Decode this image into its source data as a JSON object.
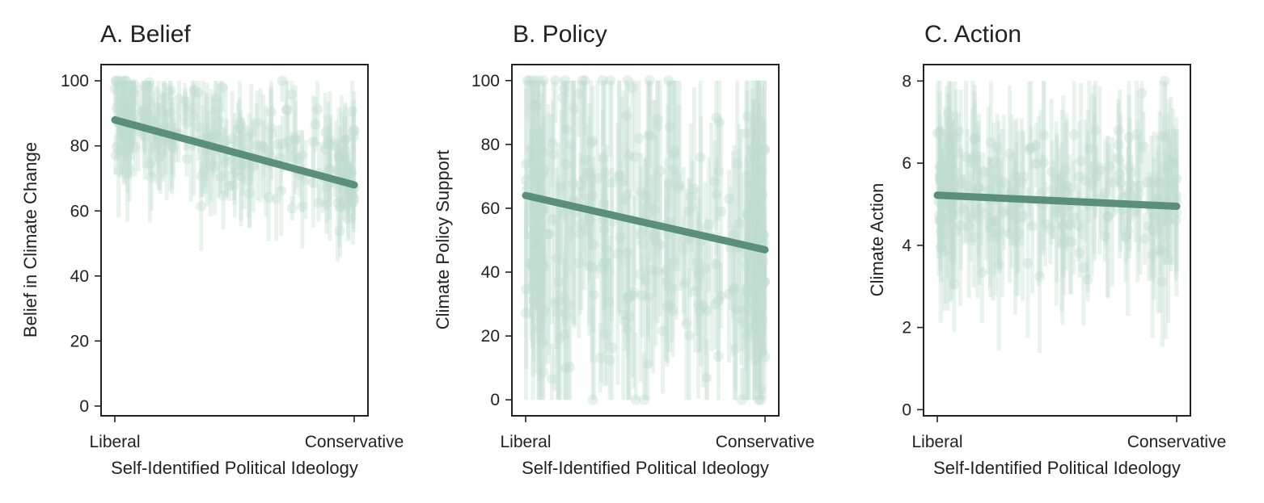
{
  "figure": {
    "colors": {
      "points": "#bfdccf",
      "fit": "#5a8f78",
      "axes": "#222222"
    }
  },
  "chart_data": [
    {
      "type": "scatter",
      "title": "A. Belief",
      "xlabel": "Self-Identified Political Ideology",
      "ylabel": "Belief in Climate Change",
      "xlim": [
        0,
        1
      ],
      "ylim": [
        -3,
        105
      ],
      "xticks": [
        {
          "value": 0,
          "label": "Liberal"
        },
        {
          "value": 1,
          "label": "Conservative"
        }
      ],
      "yticks": [
        0,
        20,
        40,
        60,
        80,
        100
      ],
      "fit_line": {
        "x": [
          0,
          1
        ],
        "y": [
          88,
          68
        ]
      },
      "scatter": {
        "n": 260,
        "noise_sd": 8,
        "err_half_mean": 12,
        "clip": [
          0,
          100
        ],
        "trend": [
          [
            0,
            90
          ],
          [
            0.5,
            80
          ],
          [
            1,
            72
          ]
        ]
      }
    },
    {
      "type": "scatter",
      "title": "B. Policy",
      "xlabel": "Self-Identified Political Ideology",
      "ylabel": "Climate Policy Support",
      "xlim": [
        0,
        1
      ],
      "ylim": [
        -5,
        105
      ],
      "xticks": [
        {
          "value": 0,
          "label": "Liberal"
        },
        {
          "value": 1,
          "label": "Conservative"
        }
      ],
      "yticks": [
        0,
        20,
        40,
        60,
        80,
        100
      ],
      "fit_line": {
        "x": [
          0,
          1
        ],
        "y": [
          64,
          47
        ]
      },
      "scatter": {
        "n": 320,
        "noise_sd": 26,
        "err_half_mean": 30,
        "clip": [
          0,
          100
        ],
        "trend": [
          [
            0,
            64
          ],
          [
            0.5,
            56
          ],
          [
            1,
            47
          ]
        ]
      }
    },
    {
      "type": "scatter",
      "title": "C. Action",
      "xlabel": "Self-Identified Political Ideology",
      "ylabel": "Climate Action",
      "xlim": [
        0,
        1
      ],
      "ylim": [
        -0.15,
        8.4
      ],
      "xticks": [
        {
          "value": 0,
          "label": "Liberal"
        },
        {
          "value": 1,
          "label": "Conservative"
        }
      ],
      "yticks": [
        0,
        2,
        4,
        6,
        8
      ],
      "fit_line": {
        "x": [
          0,
          1
        ],
        "y": [
          5.22,
          4.95
        ]
      },
      "scatter": {
        "n": 240,
        "noise_sd": 0.9,
        "err_half_mean": 1.5,
        "clip": [
          0,
          8
        ],
        "trend": [
          [
            0,
            5.5
          ],
          [
            0.5,
            5.0
          ],
          [
            1,
            5.2
          ]
        ]
      }
    }
  ]
}
